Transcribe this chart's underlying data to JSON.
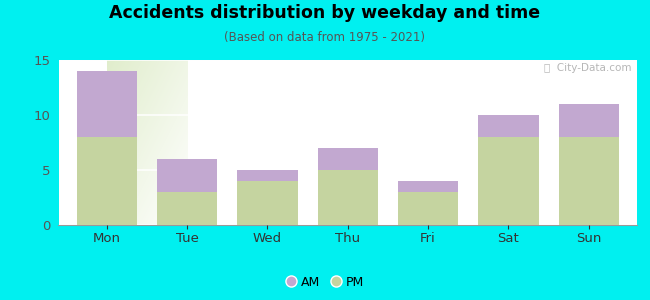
{
  "categories": [
    "Mon",
    "Tue",
    "Wed",
    "Thu",
    "Fri",
    "Sat",
    "Sun"
  ],
  "pm_values": [
    8,
    3,
    4,
    5,
    3,
    8,
    8
  ],
  "am_values": [
    6,
    3,
    1,
    2,
    1,
    2,
    3
  ],
  "pm_color": "#c5d4a0",
  "am_color": "#c2a8d0",
  "title": "Accidents distribution by weekday and time",
  "subtitle": "(Based on data from 1975 - 2021)",
  "ylim": [
    0,
    15
  ],
  "yticks": [
    0,
    5,
    10,
    15
  ],
  "background_color": "#00f0f0",
  "watermark": "ⓘ  City-Data.com",
  "legend_am": "AM",
  "legend_pm": "PM",
  "bar_width": 0.75
}
